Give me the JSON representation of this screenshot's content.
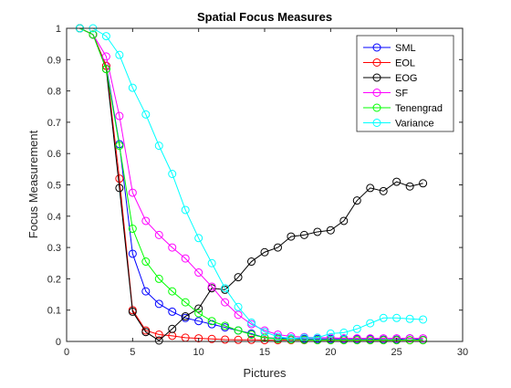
{
  "chart_data": {
    "type": "line",
    "title": "Spatial Focus Measures",
    "xlabel": "Pictures",
    "ylabel": "Focus Measurement",
    "xlim": [
      0,
      30
    ],
    "ylim": [
      0,
      1
    ],
    "xticks": [
      "0",
      "5",
      "10",
      "15",
      "20",
      "25",
      "30"
    ],
    "yticks": [
      "0",
      "0.1",
      "0.2",
      "0.3",
      "0.4",
      "0.5",
      "0.6",
      "0.7",
      "0.8",
      "0.9",
      "1"
    ],
    "grid": false,
    "legend_position": "top-right",
    "marker": "circle",
    "x": [
      1,
      2,
      3,
      4,
      5,
      6,
      7,
      8,
      9,
      10,
      11,
      12,
      13,
      14,
      15,
      16,
      17,
      18,
      19,
      20,
      21,
      22,
      23,
      24,
      25,
      26,
      27
    ],
    "series": [
      {
        "name": "SML",
        "color": "#0000ff",
        "values": [
          1.0,
          0.98,
          0.88,
          0.63,
          0.28,
          0.16,
          0.12,
          0.095,
          0.075,
          0.065,
          0.055,
          0.045,
          0.035,
          0.025,
          0.012,
          0.01,
          0.01,
          0.008,
          0.008,
          0.008,
          0.008,
          0.008,
          0.008,
          0.006,
          0.006,
          0.01,
          0.005
        ]
      },
      {
        "name": "EOL",
        "color": "#ff0000",
        "values": [
          1.0,
          0.98,
          0.88,
          0.52,
          0.1,
          0.035,
          0.022,
          0.018,
          0.012,
          0.01,
          0.008,
          0.006,
          0.005,
          0.005,
          0.004,
          0.004,
          0.004,
          0.004,
          0.004,
          0.004,
          0.004,
          0.004,
          0.004,
          0.004,
          0.004,
          0.004,
          0.004
        ]
      },
      {
        "name": "EOG",
        "color": "#000000",
        "values": [
          1.0,
          0.98,
          0.87,
          0.49,
          0.095,
          0.03,
          0.003,
          0.04,
          0.08,
          0.105,
          0.17,
          0.165,
          0.205,
          0.255,
          0.285,
          0.3,
          0.335,
          0.34,
          0.35,
          0.355,
          0.385,
          0.45,
          0.49,
          0.48,
          0.51,
          0.495,
          0.505
        ]
      },
      {
        "name": "SF",
        "color": "#ff00ff",
        "values": [
          1.0,
          0.98,
          0.91,
          0.72,
          0.475,
          0.385,
          0.34,
          0.3,
          0.265,
          0.22,
          0.175,
          0.125,
          0.085,
          0.055,
          0.035,
          0.022,
          0.016,
          0.014,
          0.012,
          0.012,
          0.01,
          0.01,
          0.01,
          0.01,
          0.01,
          0.01,
          0.01
        ]
      },
      {
        "name": "Tenengrad",
        "color": "#00ff00",
        "values": [
          1.0,
          0.98,
          0.87,
          0.625,
          0.36,
          0.255,
          0.2,
          0.16,
          0.125,
          0.09,
          0.065,
          0.05,
          0.035,
          0.022,
          0.012,
          0.008,
          0.006,
          0.005,
          0.004,
          0.004,
          0.004,
          0.004,
          0.004,
          0.004,
          0.004,
          0.004,
          0.004
        ]
      },
      {
        "name": "Variance",
        "color": "#00ffff",
        "values": [
          1.0,
          1.0,
          0.975,
          0.915,
          0.81,
          0.725,
          0.625,
          0.535,
          0.42,
          0.33,
          0.25,
          0.17,
          0.11,
          0.06,
          0.03,
          0.015,
          0.01,
          0.012,
          0.012,
          0.025,
          0.028,
          0.04,
          0.058,
          0.075,
          0.075,
          0.072,
          0.07
        ]
      }
    ]
  }
}
